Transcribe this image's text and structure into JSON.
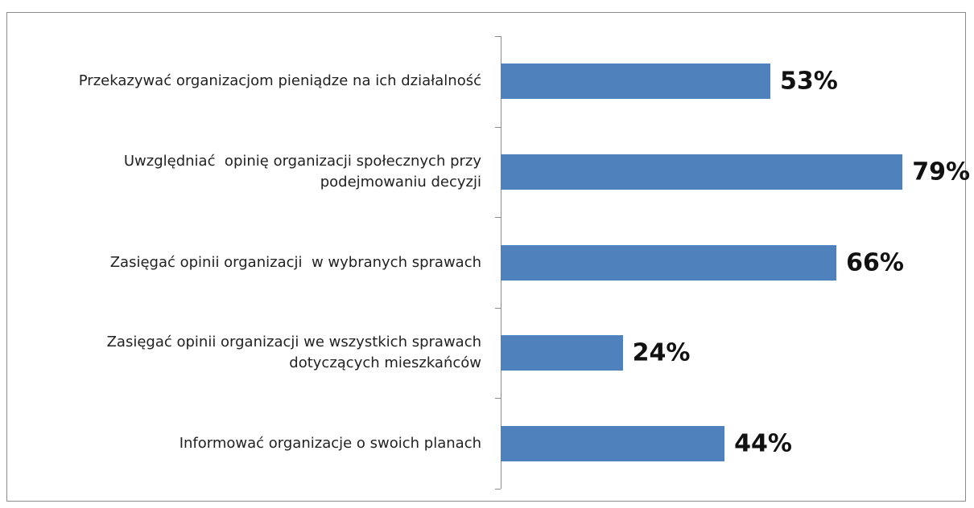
{
  "chart_data": {
    "type": "bar",
    "orientation": "horizontal",
    "categories": [
      "Przekazywać organizacjom pieniądze na ich działalność",
      "Uwzględniać  opinię organizacji społecznych przy\npodejmowaniu decyzji",
      "Zasięgać opinii organizacji  w wybranych sprawach",
      "Zasięgać opinii organizacji we wszystkich sprawach\ndotyczących mieszkańców",
      "Informować organizacje o swoich planach"
    ],
    "values": [
      53,
      79,
      66,
      24,
      44
    ],
    "value_labels": [
      "53%",
      "79%",
      "66%",
      "24%",
      "44%"
    ],
    "color": "#4f81bd"
  }
}
